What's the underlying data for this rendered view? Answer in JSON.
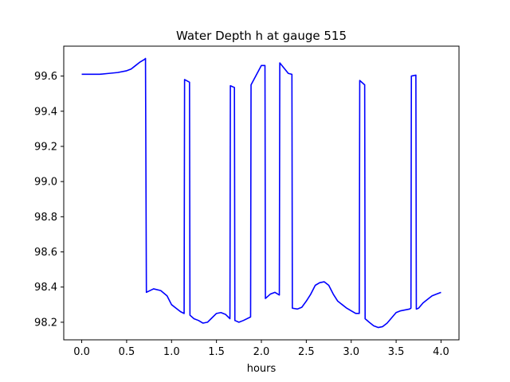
{
  "chart_data": {
    "type": "line",
    "title": "Water Depth h at gauge 515",
    "xlabel": "hours",
    "ylabel": "",
    "xlim": [
      -0.2,
      4.2
    ],
    "ylim": [
      98.1,
      99.77
    ],
    "xticks": [
      0.0,
      0.5,
      1.0,
      1.5,
      2.0,
      2.5,
      3.0,
      3.5,
      4.0
    ],
    "xtick_labels": [
      "0.0",
      "0.5",
      "1.0",
      "1.5",
      "2.0",
      "2.5",
      "3.0",
      "3.5",
      "4.0"
    ],
    "yticks": [
      98.2,
      98.4,
      98.6,
      98.8,
      99.0,
      99.2,
      99.4,
      99.6
    ],
    "ytick_labels": [
      "98.2",
      "98.4",
      "98.6",
      "98.8",
      "99.0",
      "99.2",
      "99.4",
      "99.6"
    ],
    "grid": false,
    "series": [
      {
        "color": "#0000ff",
        "x": [
          0.0,
          0.1,
          0.2,
          0.3,
          0.4,
          0.5,
          0.55,
          0.6,
          0.65,
          0.7,
          0.71,
          0.72,
          0.8,
          0.88,
          0.95,
          1.0,
          1.05,
          1.1,
          1.14,
          1.145,
          1.2,
          1.205,
          1.25,
          1.3,
          1.35,
          1.4,
          1.45,
          1.5,
          1.55,
          1.6,
          1.65,
          1.655,
          1.7,
          1.705,
          1.75,
          1.8,
          1.88,
          1.885,
          2.0,
          2.04,
          2.045,
          2.1,
          2.15,
          2.2,
          2.205,
          2.3,
          2.34,
          2.345,
          2.4,
          2.45,
          2.5,
          2.55,
          2.6,
          2.65,
          2.7,
          2.75,
          2.8,
          2.85,
          2.9,
          2.95,
          3.0,
          3.05,
          3.09,
          3.095,
          3.15,
          3.155,
          3.2,
          3.25,
          3.3,
          3.35,
          3.4,
          3.45,
          3.5,
          3.55,
          3.6,
          3.65,
          3.665,
          3.67,
          3.72,
          3.725,
          3.75,
          3.8,
          3.85,
          3.9,
          3.95,
          4.0
        ],
        "y": [
          99.61,
          99.61,
          99.61,
          99.615,
          99.62,
          99.63,
          99.64,
          99.66,
          99.68,
          99.695,
          99.7,
          98.37,
          98.39,
          98.38,
          98.35,
          98.3,
          98.28,
          98.26,
          98.25,
          99.58,
          99.565,
          98.24,
          98.22,
          98.21,
          98.195,
          98.2,
          98.225,
          98.25,
          98.255,
          98.245,
          98.22,
          99.545,
          99.535,
          98.21,
          98.2,
          98.21,
          98.23,
          99.55,
          99.66,
          99.66,
          98.335,
          98.36,
          98.37,
          98.355,
          99.675,
          99.615,
          99.61,
          98.28,
          98.275,
          98.285,
          98.32,
          98.36,
          98.41,
          98.425,
          98.43,
          98.41,
          98.36,
          98.32,
          98.3,
          98.28,
          98.265,
          98.25,
          98.25,
          99.575,
          99.55,
          98.22,
          98.2,
          98.18,
          98.17,
          98.175,
          98.195,
          98.225,
          98.255,
          98.265,
          98.27,
          98.275,
          98.28,
          99.6,
          99.605,
          98.275,
          98.28,
          98.31,
          98.33,
          98.35,
          98.36,
          98.37
        ]
      }
    ]
  }
}
